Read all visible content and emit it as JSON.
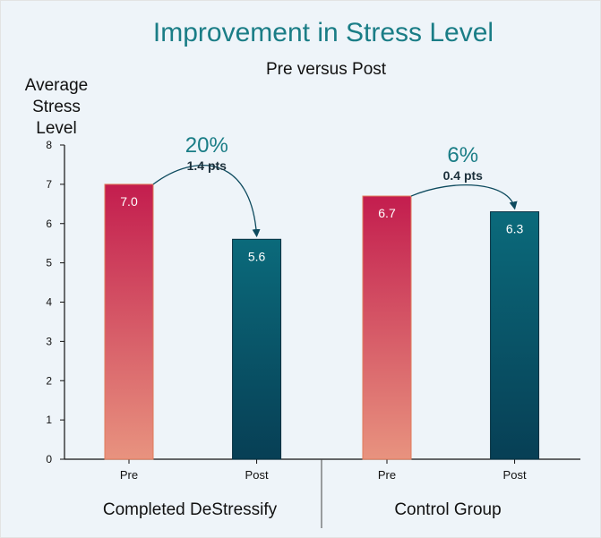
{
  "chart_data": {
    "type": "bar",
    "title": "Improvement in Stress Level",
    "subtitle": "Pre versus Post",
    "ylabel": [
      "Average",
      "Stress",
      "Level"
    ],
    "ylim": [
      0,
      8
    ],
    "yticks": [
      0,
      1,
      2,
      3,
      4,
      5,
      6,
      7,
      8
    ],
    "groups": [
      {
        "name": "Completed DeStressify",
        "bars": [
          {
            "category": "Pre",
            "value": 7.0,
            "label": "7.0"
          },
          {
            "category": "Post",
            "value": 5.6,
            "label": "5.6"
          }
        ],
        "change": {
          "percent": "20%",
          "points": "1.4 pts"
        }
      },
      {
        "name": "Control Group",
        "bars": [
          {
            "category": "Pre",
            "value": 6.7,
            "label": "6.7"
          },
          {
            "category": "Post",
            "value": 6.3,
            "label": "6.3"
          }
        ],
        "change": {
          "percent": "6%",
          "points": "0.4 pts"
        }
      }
    ],
    "grid": false,
    "colors": {
      "pre_top": "#c31d4e",
      "pre_bottom": "#e8937f",
      "post_top": "#0b6a7b",
      "post_bottom": "#073f55",
      "title": "#1a7d86",
      "change_percent": "#1a7d86",
      "arrow": "#0d4a5e",
      "text": "#111111"
    }
  }
}
